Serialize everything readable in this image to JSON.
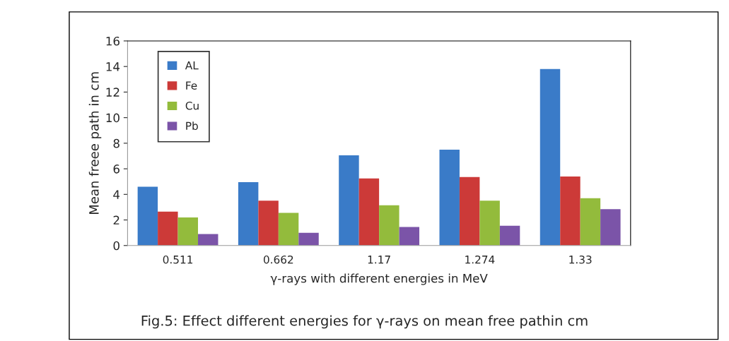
{
  "chart_data": {
    "type": "bar",
    "categories": [
      "0.511",
      "0.662",
      "1.17",
      "1.274",
      "1.33"
    ],
    "xlabel": "γ-rays with different energies in MeV",
    "ylabel": "Mean freee path in cm",
    "ylim": [
      0,
      16
    ],
    "yticks": [
      0,
      2,
      4,
      6,
      8,
      10,
      12,
      14,
      16
    ],
    "grid": false,
    "legend": "top left",
    "series": [
      {
        "name": "AL",
        "color": "#3a7bc8",
        "values": [
          4.6,
          4.95,
          7.05,
          7.5,
          13.8
        ]
      },
      {
        "name": "Fe",
        "color": "#cc3a38",
        "values": [
          2.65,
          3.5,
          5.25,
          5.35,
          5.4
        ]
      },
      {
        "name": "Cu",
        "color": "#93bb3c",
        "values": [
          2.2,
          2.55,
          3.15,
          3.5,
          3.7
        ]
      },
      {
        "name": "Pb",
        "color": "#7b54a8",
        "values": [
          0.9,
          1.0,
          1.45,
          1.55,
          2.85
        ]
      }
    ],
    "annotations": [
      "Fig.5: Effect different energies for γ-rays on mean free pathin cm"
    ]
  }
}
